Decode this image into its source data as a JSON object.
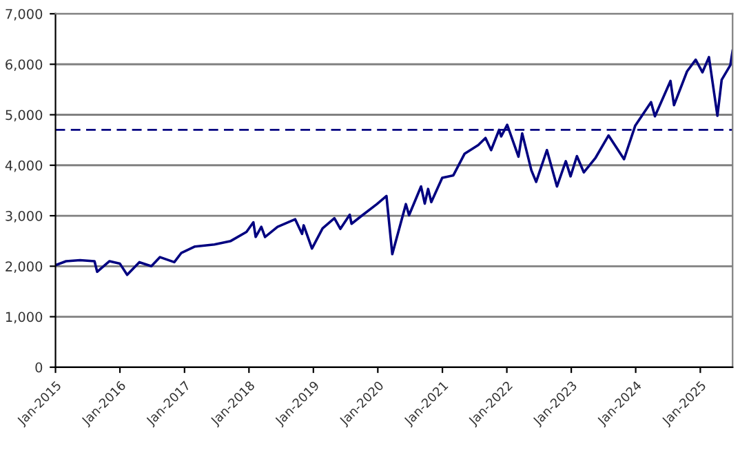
{
  "chart_data": {
    "type": "line",
    "x": [
      "2015-01-01",
      "2015-03-02",
      "2015-05-20",
      "2015-08-10",
      "2015-08-25",
      "2015-11-03",
      "2016-01-01",
      "2016-02-11",
      "2016-04-20",
      "2016-06-27",
      "2016-08-15",
      "2016-11-04",
      "2016-12-13",
      "2017-03-01",
      "2017-06-19",
      "2017-09-20",
      "2017-12-18",
      "2018-01-26",
      "2018-02-08",
      "2018-03-12",
      "2018-04-02",
      "2018-06-12",
      "2018-09-20",
      "2018-10-29",
      "2018-11-07",
      "2018-12-24",
      "2019-02-22",
      "2019-04-30",
      "2019-06-03",
      "2019-07-26",
      "2019-08-05",
      "2019-10-02",
      "2019-12-27",
      "2020-02-19",
      "2020-03-23",
      "2020-06-08",
      "2020-06-26",
      "2020-09-02",
      "2020-09-23",
      "2020-10-12",
      "2020-10-30",
      "2020-12-31",
      "2021-03-04",
      "2021-05-07",
      "2021-07-23",
      "2021-09-02",
      "2021-10-04",
      "2021-11-18",
      "2021-11-30",
      "2022-01-03",
      "2022-03-08",
      "2022-03-29",
      "2022-05-20",
      "2022-06-16",
      "2022-08-16",
      "2022-10-12",
      "2022-12-01",
      "2022-12-28",
      "2023-02-02",
      "2023-03-13",
      "2023-05-19",
      "2023-07-31",
      "2023-10-27",
      "2023-12-29",
      "2024-03-28",
      "2024-04-19",
      "2024-07-16",
      "2024-08-05",
      "2024-10-18",
      "2024-12-06",
      "2025-01-13",
      "2025-02-19",
      "2025-04-08",
      "2025-05-02",
      "2025-06-20",
      "2025-07-03"
    ],
    "series": [
      {
        "color": "#000080",
        "values": [
          2020,
          2100,
          2120,
          2100,
          1890,
          2100,
          2050,
          1830,
          2080,
          2000,
          2180,
          2080,
          2260,
          2390,
          2430,
          2500,
          2680,
          2870,
          2580,
          2780,
          2580,
          2780,
          2930,
          2640,
          2810,
          2350,
          2750,
          2950,
          2740,
          3020,
          2840,
          3000,
          3230,
          3390,
          2240,
          3230,
          3010,
          3580,
          3240,
          3530,
          3270,
          3750,
          3800,
          4230,
          4400,
          4540,
          4300,
          4700,
          4570,
          4800,
          4170,
          4630,
          3900,
          3670,
          4300,
          3580,
          4080,
          3780,
          4180,
          3860,
          4150,
          4590,
          4120,
          4780,
          5250,
          4970,
          5670,
          5190,
          5860,
          6090,
          5840,
          6140,
          4980,
          5690,
          5980,
          6270
        ]
      }
    ],
    "xlim": [
      "2015-01-01",
      "2025-07-03"
    ],
    "xticks": [
      {
        "value": "2015-01-01",
        "label": "Jan-2015"
      },
      {
        "value": "2016-01-01",
        "label": "Jan-2016"
      },
      {
        "value": "2017-01-01",
        "label": "Jan-2017"
      },
      {
        "value": "2018-01-01",
        "label": "Jan-2018"
      },
      {
        "value": "2019-01-01",
        "label": "Jan-2019"
      },
      {
        "value": "2020-01-01",
        "label": "Jan-2020"
      },
      {
        "value": "2021-01-01",
        "label": "Jan-2021"
      },
      {
        "value": "2022-01-01",
        "label": "Jan-2022"
      },
      {
        "value": "2023-01-01",
        "label": "Jan-2023"
      },
      {
        "value": "2024-01-01",
        "label": "Jan-2024"
      },
      {
        "value": "2025-01-01",
        "label": "Jan-2025"
      }
    ],
    "ylim": [
      0,
      7000
    ],
    "yticks": [
      {
        "value": 0,
        "label": "0"
      },
      {
        "value": 1000,
        "label": "1,000"
      },
      {
        "value": 2000,
        "label": "2,000"
      },
      {
        "value": 3000,
        "label": "3,000"
      },
      {
        "value": 4000,
        "label": "4,000"
      },
      {
        "value": 5000,
        "label": "5,000"
      },
      {
        "value": 6000,
        "label": "6,000"
      },
      {
        "value": 7000,
        "label": "7,000"
      }
    ],
    "ref_lines": [
      {
        "axis": "y",
        "value": 4700,
        "color": "#000080",
        "line_style": "dashed"
      }
    ],
    "grid": "y",
    "marker": "none",
    "line_style": "solid"
  }
}
